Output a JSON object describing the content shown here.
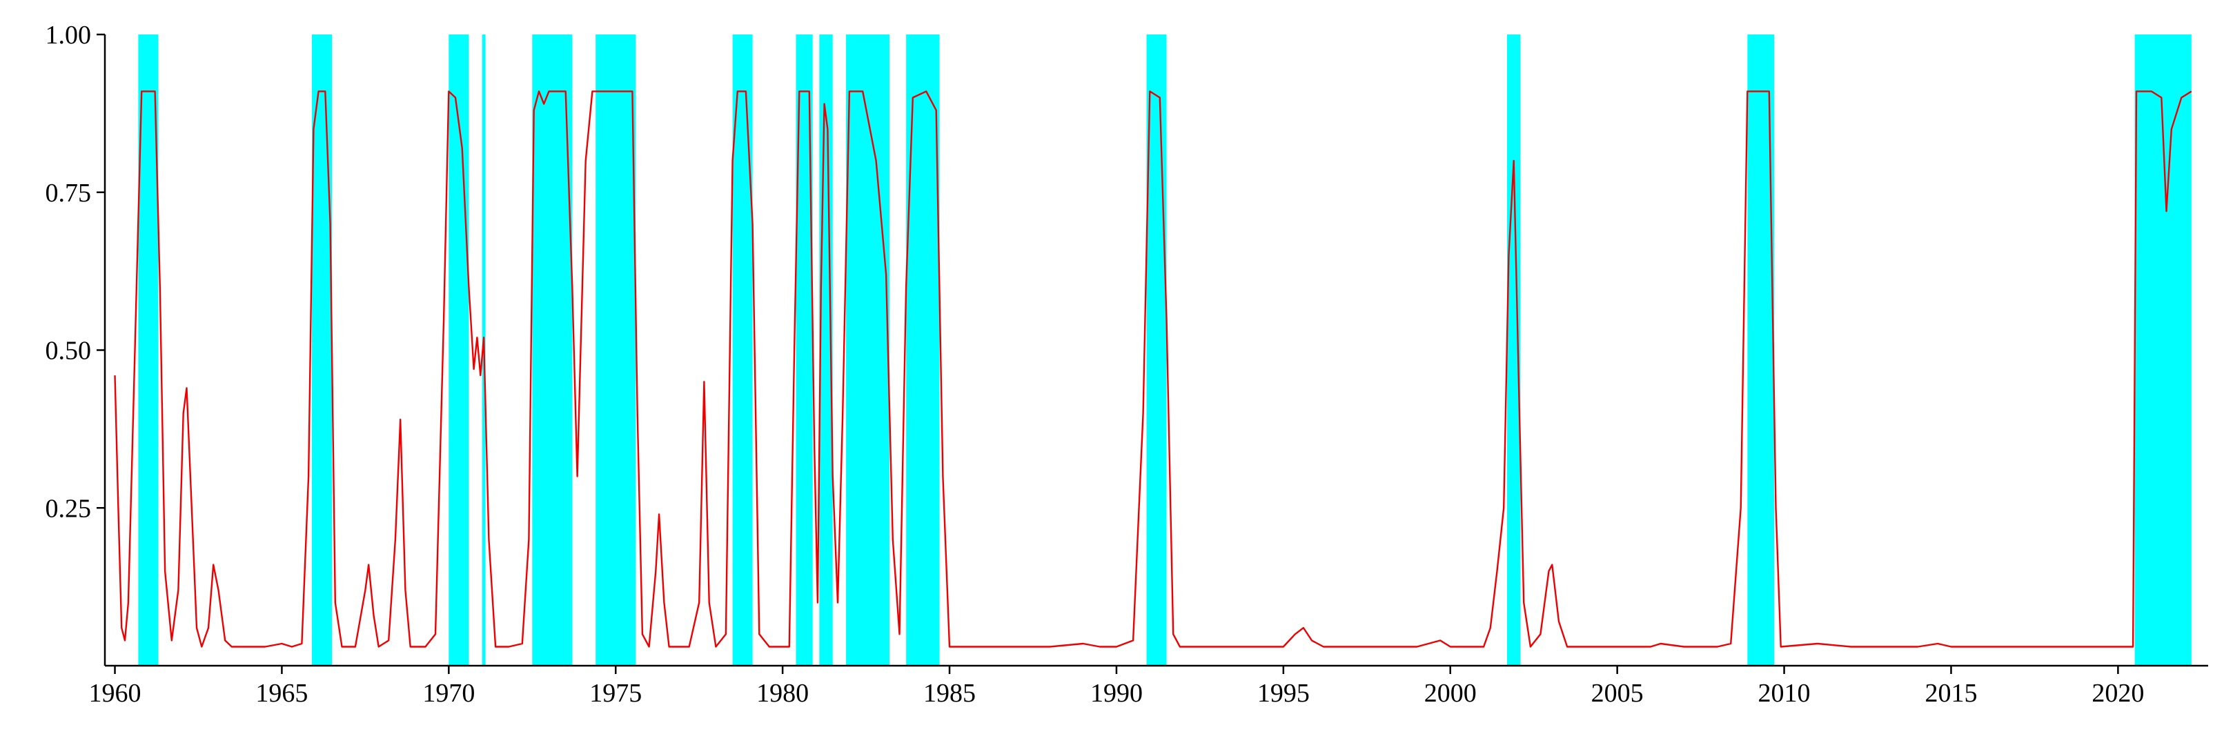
{
  "colors": {
    "series": "#ee0000",
    "recession_shading": "#00ffff",
    "axis": "#000000",
    "background": "#ffffff"
  },
  "chart_data": {
    "type": "line",
    "title": "",
    "xlabel": "",
    "ylabel": "",
    "xlim": [
      1959.7,
      2022.7
    ],
    "ylim": [
      0,
      1.0
    ],
    "grid": false,
    "x_ticks": [
      {
        "value": 1960,
        "label": "1960"
      },
      {
        "value": 1965,
        "label": "1965"
      },
      {
        "value": 1970,
        "label": "1970"
      },
      {
        "value": 1975,
        "label": "1975"
      },
      {
        "value": 1980,
        "label": "1980"
      },
      {
        "value": 1985,
        "label": "1985"
      },
      {
        "value": 1990,
        "label": "1990"
      },
      {
        "value": 1995,
        "label": "1995"
      },
      {
        "value": 2000,
        "label": "2000"
      },
      {
        "value": 2005,
        "label": "2005"
      },
      {
        "value": 2010,
        "label": "2010"
      },
      {
        "value": 2015,
        "label": "2015"
      },
      {
        "value": 2020,
        "label": "2020"
      }
    ],
    "y_ticks": [
      {
        "value": 0.25,
        "label": "0.25"
      },
      {
        "value": 0.5,
        "label": "0.50"
      },
      {
        "value": 0.75,
        "label": "0.75"
      },
      {
        "value": 1.0,
        "label": "1.00"
      }
    ],
    "shaded_periods": [
      [
        1960.7,
        1961.3
      ],
      [
        1965.9,
        1966.5
      ],
      [
        1970.0,
        1970.6
      ],
      [
        1971.0,
        1971.1
      ],
      [
        1972.5,
        1973.7
      ],
      [
        1974.4,
        1975.6
      ],
      [
        1978.5,
        1979.1
      ],
      [
        1980.4,
        1980.9
      ],
      [
        1981.1,
        1981.5
      ],
      [
        1981.9,
        1983.2
      ],
      [
        1983.7,
        1984.7
      ],
      [
        1990.9,
        1991.5
      ],
      [
        2001.7,
        2002.1
      ],
      [
        2008.9,
        2009.7
      ],
      [
        2020.5,
        2022.2
      ]
    ],
    "series": [
      {
        "points": [
          [
            1960.0,
            0.46
          ],
          [
            1960.1,
            0.25
          ],
          [
            1960.2,
            0.06
          ],
          [
            1960.3,
            0.04
          ],
          [
            1960.4,
            0.1
          ],
          [
            1960.6,
            0.5
          ],
          [
            1960.8,
            0.91
          ],
          [
            1961.0,
            0.91
          ],
          [
            1961.2,
            0.91
          ],
          [
            1961.35,
            0.6
          ],
          [
            1961.5,
            0.15
          ],
          [
            1961.7,
            0.04
          ],
          [
            1961.9,
            0.12
          ],
          [
            1962.05,
            0.4
          ],
          [
            1962.15,
            0.44
          ],
          [
            1962.3,
            0.25
          ],
          [
            1962.45,
            0.06
          ],
          [
            1962.6,
            0.03
          ],
          [
            1962.8,
            0.06
          ],
          [
            1962.95,
            0.16
          ],
          [
            1963.1,
            0.12
          ],
          [
            1963.3,
            0.04
          ],
          [
            1963.5,
            0.03
          ],
          [
            1964.0,
            0.03
          ],
          [
            1964.5,
            0.03
          ],
          [
            1965.0,
            0.035
          ],
          [
            1965.3,
            0.03
          ],
          [
            1965.6,
            0.035
          ],
          [
            1965.8,
            0.3
          ],
          [
            1965.95,
            0.85
          ],
          [
            1966.1,
            0.91
          ],
          [
            1966.3,
            0.91
          ],
          [
            1966.45,
            0.7
          ],
          [
            1966.6,
            0.1
          ],
          [
            1966.8,
            0.03
          ],
          [
            1967.2,
            0.03
          ],
          [
            1967.5,
            0.12
          ],
          [
            1967.6,
            0.16
          ],
          [
            1967.75,
            0.08
          ],
          [
            1967.9,
            0.03
          ],
          [
            1968.2,
            0.04
          ],
          [
            1968.4,
            0.2
          ],
          [
            1968.55,
            0.39
          ],
          [
            1968.7,
            0.12
          ],
          [
            1968.85,
            0.03
          ],
          [
            1969.3,
            0.03
          ],
          [
            1969.6,
            0.05
          ],
          [
            1969.85,
            0.55
          ],
          [
            1970.0,
            0.91
          ],
          [
            1970.2,
            0.9
          ],
          [
            1970.4,
            0.82
          ],
          [
            1970.6,
            0.6
          ],
          [
            1970.75,
            0.47
          ],
          [
            1970.85,
            0.52
          ],
          [
            1970.95,
            0.46
          ],
          [
            1971.05,
            0.52
          ],
          [
            1971.2,
            0.2
          ],
          [
            1971.4,
            0.03
          ],
          [
            1971.8,
            0.03
          ],
          [
            1972.2,
            0.035
          ],
          [
            1972.4,
            0.2
          ],
          [
            1972.55,
            0.88
          ],
          [
            1972.7,
            0.91
          ],
          [
            1972.85,
            0.89
          ],
          [
            1973.0,
            0.91
          ],
          [
            1973.5,
            0.91
          ],
          [
            1973.7,
            0.6
          ],
          [
            1973.85,
            0.3
          ],
          [
            1974.1,
            0.8
          ],
          [
            1974.3,
            0.91
          ],
          [
            1975.0,
            0.91
          ],
          [
            1975.5,
            0.91
          ],
          [
            1975.65,
            0.4
          ],
          [
            1975.8,
            0.05
          ],
          [
            1976.0,
            0.03
          ],
          [
            1976.2,
            0.15
          ],
          [
            1976.3,
            0.24
          ],
          [
            1976.45,
            0.1
          ],
          [
            1976.6,
            0.03
          ],
          [
            1977.2,
            0.03
          ],
          [
            1977.5,
            0.1
          ],
          [
            1977.65,
            0.45
          ],
          [
            1977.8,
            0.1
          ],
          [
            1978.0,
            0.03
          ],
          [
            1978.3,
            0.05
          ],
          [
            1978.5,
            0.8
          ],
          [
            1978.65,
            0.91
          ],
          [
            1978.9,
            0.91
          ],
          [
            1979.1,
            0.7
          ],
          [
            1979.3,
            0.05
          ],
          [
            1979.6,
            0.03
          ],
          [
            1980.2,
            0.03
          ],
          [
            1980.35,
            0.5
          ],
          [
            1980.5,
            0.91
          ],
          [
            1980.8,
            0.91
          ],
          [
            1980.95,
            0.35
          ],
          [
            1981.05,
            0.1
          ],
          [
            1981.15,
            0.6
          ],
          [
            1981.25,
            0.89
          ],
          [
            1981.35,
            0.85
          ],
          [
            1981.5,
            0.3
          ],
          [
            1981.65,
            0.1
          ],
          [
            1981.8,
            0.4
          ],
          [
            1982.0,
            0.91
          ],
          [
            1982.4,
            0.91
          ],
          [
            1982.8,
            0.8
          ],
          [
            1983.1,
            0.62
          ],
          [
            1983.3,
            0.2
          ],
          [
            1983.5,
            0.05
          ],
          [
            1983.7,
            0.6
          ],
          [
            1983.9,
            0.9
          ],
          [
            1984.3,
            0.91
          ],
          [
            1984.6,
            0.88
          ],
          [
            1984.8,
            0.3
          ],
          [
            1985.0,
            0.03
          ],
          [
            1986.0,
            0.03
          ],
          [
            1987.0,
            0.03
          ],
          [
            1988.0,
            0.03
          ],
          [
            1989.0,
            0.035
          ],
          [
            1989.5,
            0.03
          ],
          [
            1990.0,
            0.03
          ],
          [
            1990.5,
            0.04
          ],
          [
            1990.8,
            0.4
          ],
          [
            1991.0,
            0.91
          ],
          [
            1991.3,
            0.9
          ],
          [
            1991.5,
            0.55
          ],
          [
            1991.7,
            0.05
          ],
          [
            1991.9,
            0.03
          ],
          [
            1993.0,
            0.03
          ],
          [
            1994.0,
            0.03
          ],
          [
            1995.0,
            0.03
          ],
          [
            1995.35,
            0.05
          ],
          [
            1995.6,
            0.06
          ],
          [
            1995.85,
            0.04
          ],
          [
            1996.2,
            0.03
          ],
          [
            1997.0,
            0.03
          ],
          [
            1998.0,
            0.03
          ],
          [
            1999.0,
            0.03
          ],
          [
            1999.7,
            0.04
          ],
          [
            2000.0,
            0.03
          ],
          [
            2000.5,
            0.03
          ],
          [
            2001.0,
            0.03
          ],
          [
            2001.2,
            0.06
          ],
          [
            2001.4,
            0.15
          ],
          [
            2001.6,
            0.25
          ],
          [
            2001.75,
            0.65
          ],
          [
            2001.9,
            0.8
          ],
          [
            2002.05,
            0.45
          ],
          [
            2002.2,
            0.1
          ],
          [
            2002.4,
            0.03
          ],
          [
            2002.7,
            0.05
          ],
          [
            2002.95,
            0.15
          ],
          [
            2003.05,
            0.16
          ],
          [
            2003.25,
            0.07
          ],
          [
            2003.5,
            0.03
          ],
          [
            2004.0,
            0.03
          ],
          [
            2005.0,
            0.03
          ],
          [
            2006.0,
            0.03
          ],
          [
            2006.3,
            0.035
          ],
          [
            2007.0,
            0.03
          ],
          [
            2008.0,
            0.03
          ],
          [
            2008.4,
            0.035
          ],
          [
            2008.7,
            0.25
          ],
          [
            2008.9,
            0.91
          ],
          [
            2009.2,
            0.91
          ],
          [
            2009.55,
            0.91
          ],
          [
            2009.75,
            0.25
          ],
          [
            2009.9,
            0.03
          ],
          [
            2011.0,
            0.035
          ],
          [
            2012.0,
            0.03
          ],
          [
            2013.0,
            0.03
          ],
          [
            2014.0,
            0.03
          ],
          [
            2014.6,
            0.035
          ],
          [
            2015.0,
            0.03
          ],
          [
            2016.0,
            0.03
          ],
          [
            2017.0,
            0.03
          ],
          [
            2018.0,
            0.03
          ],
          [
            2019.0,
            0.03
          ],
          [
            2020.0,
            0.03
          ],
          [
            2020.45,
            0.03
          ],
          [
            2020.55,
            0.91
          ],
          [
            2021.0,
            0.91
          ],
          [
            2021.3,
            0.9
          ],
          [
            2021.45,
            0.72
          ],
          [
            2021.6,
            0.85
          ],
          [
            2021.9,
            0.9
          ],
          [
            2022.2,
            0.91
          ]
        ]
      }
    ]
  }
}
